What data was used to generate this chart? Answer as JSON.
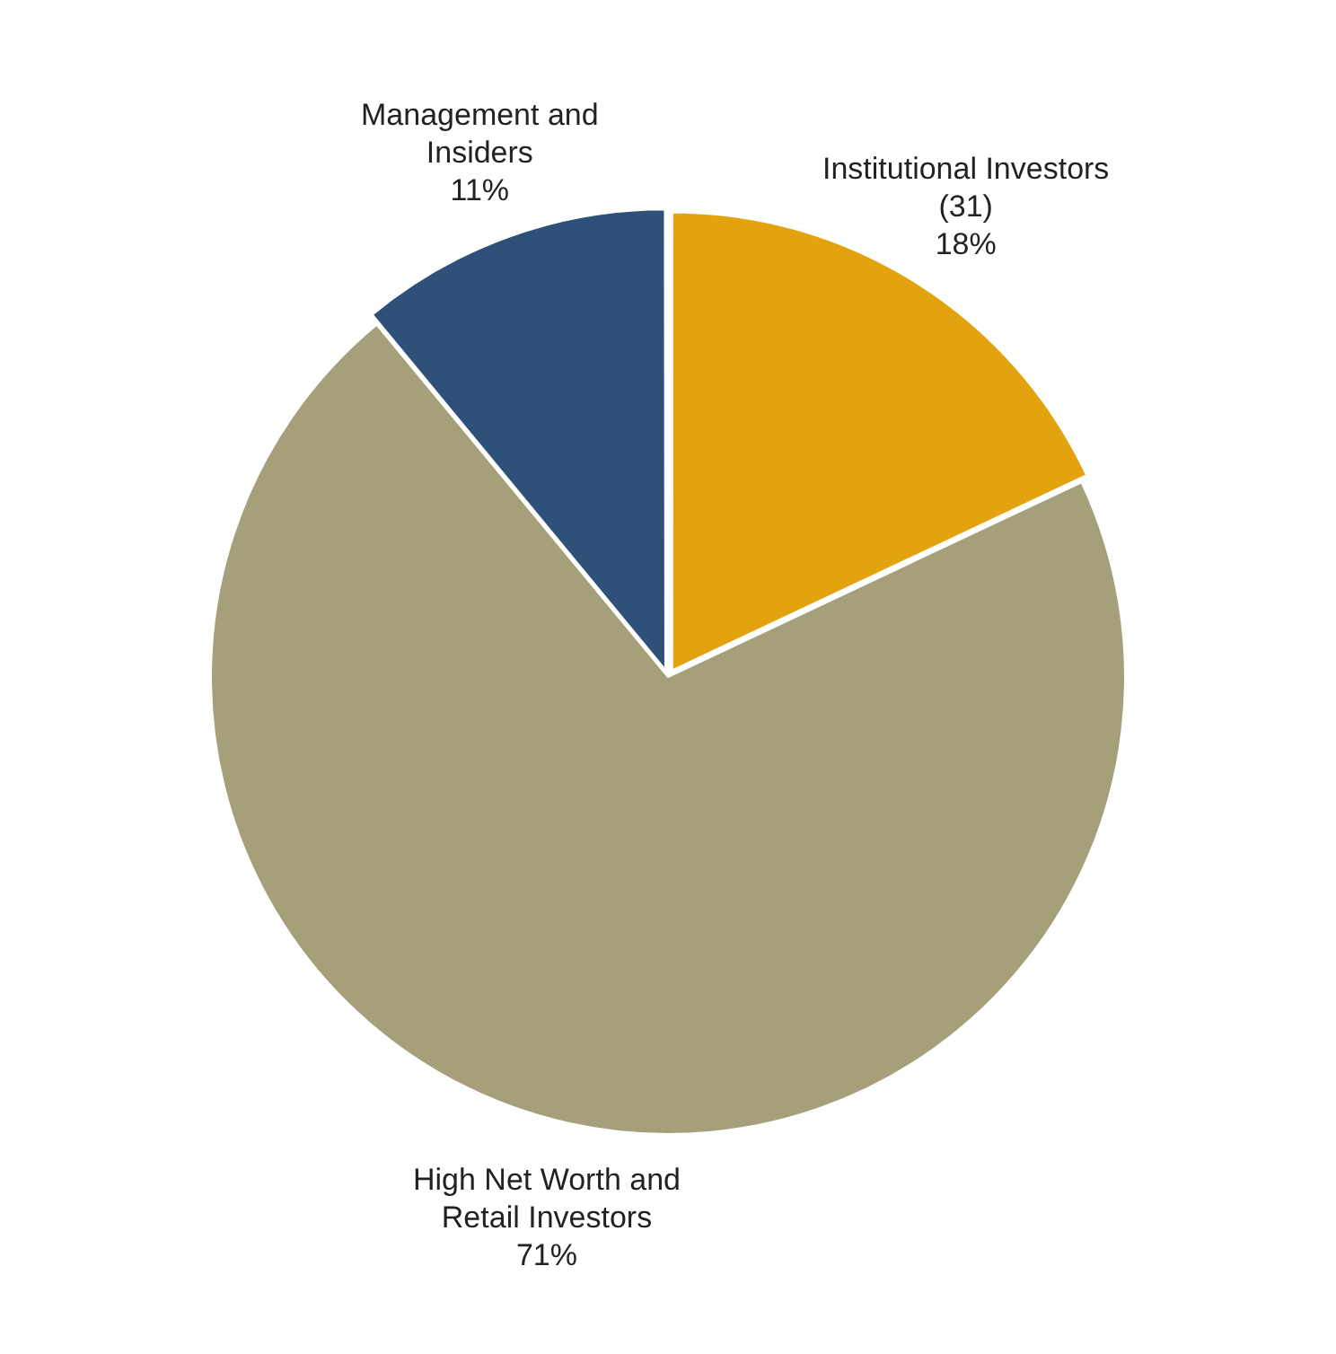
{
  "chart_data": {
    "type": "pie",
    "categories": [
      "Institutional Investors (31)",
      "High Net Worth and Retail Investors",
      "Management and Insiders"
    ],
    "values": [
      18,
      71,
      11
    ],
    "value_labels": [
      "18%",
      "71%",
      "11%"
    ],
    "colors": [
      "#e2a30f",
      "#a5a07a",
      "#2e5079"
    ],
    "legend": false
  }
}
